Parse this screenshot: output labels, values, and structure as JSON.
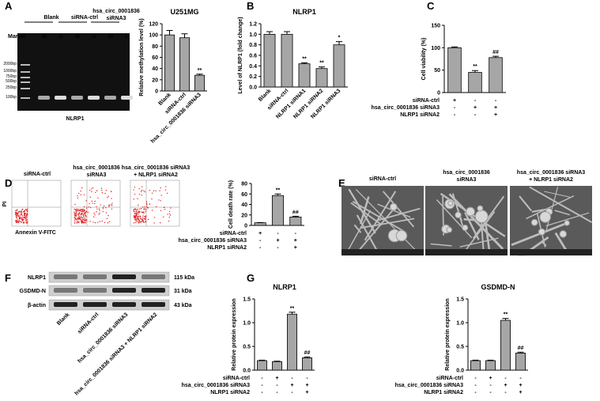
{
  "panel_labels": [
    "A",
    "B",
    "C",
    "D",
    "E",
    "F",
    "G"
  ],
  "gel": {
    "marker": "Marker",
    "lanes": [
      [
        "Blank"
      ],
      [
        "siRNA-ctrl"
      ],
      [
        "hsa_circ_0001836",
        "siRNA3"
      ]
    ],
    "lane_sub": [
      "M",
      "U",
      "M",
      "U",
      "M",
      "U"
    ],
    "sizes": [
      "2000bp",
      "1000bp",
      "750bp",
      "500bp",
      "250bp",
      "100bp"
    ],
    "caption": "NLRP1"
  },
  "flow": {
    "y_label": "PI",
    "x_label": "Annexin V-FITC",
    "titles": [
      [
        "siRNA-ctrl"
      ],
      [
        "hsa_circ_0001836",
        "siRNA3"
      ],
      [
        "hsa_circ_0001836 siRNA3",
        "+ NLRP1 siRNA2"
      ]
    ]
  },
  "sem": {
    "titles": [
      [
        "siRNA-ctrl"
      ],
      [
        "hsa_circ_0001836",
        "siRNA3"
      ],
      [
        "hsa_circ_0001836 siRNA3",
        "+ NLRP1 siRNA2"
      ]
    ]
  },
  "western": {
    "proteins": [
      "NLRP1",
      "GSDMD-N",
      "β-actin"
    ],
    "sizes": [
      "115 kDa",
      "31 kDa",
      "43 kDa"
    ],
    "lanes": [
      "Blank",
      "siRNA-ctrl",
      "hsa_circ_0001836 siRNA3",
      "hsa_circ_0001836 siRNA3 + NLRP1 siRNA2"
    ]
  },
  "chart_data": [
    {
      "type": "bar",
      "title": "U251MG",
      "y_label": "Relative methylation level (%)",
      "categories": [
        "Blank",
        "siRNA-ctrl",
        "hsa_circ_0001836 siRNA3"
      ],
      "values": [
        100,
        95,
        28
      ],
      "errors": [
        8,
        7,
        2
      ],
      "color": "#a6a6a6",
      "ylim": [
        0,
        120
      ],
      "yticks": [
        0,
        20,
        40,
        60,
        80,
        100,
        120
      ],
      "annotations": [
        {
          "index": 2,
          "text": "**"
        }
      ]
    },
    {
      "type": "bar",
      "title": "NLRP1",
      "y_label": "Level of NLRP1 (fold change)",
      "categories": [
        "Blank",
        "siRNA-ctrl",
        "NLRP1 siRNA1",
        "NLRP1 siRNA2",
        "NLRP1 siRNA3"
      ],
      "values": [
        1.0,
        1.0,
        0.44,
        0.35,
        0.8
      ],
      "errors": [
        0.05,
        0.05,
        0.02,
        0.03,
        0.06
      ],
      "color": "#a6a6a6",
      "ylim": [
        0,
        1.2
      ],
      "yticks": [
        {
          "value": 0,
          "label": "0.0"
        },
        0.2,
        0.4,
        0.6,
        0.8,
        {
          "value": 1,
          "label": "1.0"
        },
        1.2
      ],
      "annotations": [
        {
          "index": 2,
          "text": "**"
        },
        {
          "index": 3,
          "text": "**"
        },
        {
          "index": 4,
          "text": "*"
        }
      ]
    },
    {
      "type": "bar",
      "y_label": "Cell viability (%)",
      "conditions": [
        {
          "name": "siRNA-ctrl",
          "marks": [
            "+",
            "-",
            "-"
          ]
        },
        {
          "name": "hsa_circ_0001836 siRNA3",
          "marks": [
            "-",
            "+",
            "+"
          ]
        },
        {
          "name": "NLRP1 siRNA2",
          "marks": [
            "-",
            "-",
            "+"
          ]
        }
      ],
      "values": [
        100,
        45,
        78
      ],
      "errors": [
        2,
        4,
        3
      ],
      "color": "#a6a6a6",
      "ylim": [
        0,
        150
      ],
      "yticks": [
        0,
        50,
        100,
        150
      ],
      "annotations": [
        {
          "index": 1,
          "text": "**"
        },
        {
          "index": 2,
          "text": "##"
        }
      ]
    },
    {
      "type": "bar",
      "y_label": "Cell death rate (%)",
      "conditions": [
        {
          "name": "siRNA-ctrl",
          "marks": [
            "+",
            "-",
            "-"
          ]
        },
        {
          "name": "hsa_circ_0001836 siRNA3",
          "marks": [
            "-",
            "+",
            "+"
          ]
        },
        {
          "name": "NLRP1 siRNA2",
          "marks": [
            "-",
            "-",
            "+"
          ]
        }
      ],
      "values": [
        5,
        57,
        16
      ],
      "errors": [
        0.5,
        3,
        1.5
      ],
      "color": "#a6a6a6",
      "ylim": [
        0,
        80
      ],
      "yticks": [
        0,
        20,
        40,
        60,
        80
      ],
      "annotations": [
        {
          "index": 1,
          "text": "**"
        },
        {
          "index": 2,
          "text": "##"
        }
      ]
    },
    {
      "type": "bar",
      "title": "NLRP1",
      "y_label": "Relative protein expression",
      "conditions": [
        {
          "name": "siRNA-ctrl",
          "marks": [
            "-",
            "+",
            "-",
            "-"
          ]
        },
        {
          "name": "hsa_circ_0001836 siRNA3",
          "marks": [
            "-",
            "-",
            "+",
            "+"
          ]
        },
        {
          "name": "NLRP1 siRNA2",
          "marks": [
            "-",
            "-",
            "-",
            "+"
          ]
        }
      ],
      "values": [
        0.2,
        0.18,
        1.18,
        0.26
      ],
      "errors": [
        0.01,
        0.01,
        0.04,
        0.02
      ],
      "color": "#a6a6a6",
      "ylim": [
        0,
        1.5
      ],
      "yticks": [
        {
          "value": 0,
          "label": "0.0"
        },
        0.5,
        {
          "value": 1,
          "label": "1.0"
        },
        1.5
      ],
      "annotations": [
        {
          "index": 2,
          "text": "**"
        },
        {
          "index": 3,
          "text": "##"
        }
      ]
    },
    {
      "type": "bar",
      "title": "GSDMD-N",
      "y_label": "Relative protein expression",
      "conditions": [
        {
          "name": "siRNA-ctrl",
          "marks": [
            "-",
            "+",
            "-",
            "-"
          ]
        },
        {
          "name": "hsa_circ_0001836 siRNA3",
          "marks": [
            "-",
            "-",
            "+",
            "+"
          ]
        },
        {
          "name": "NLRP1 siRNA2",
          "marks": [
            "-",
            "-",
            "-",
            "+"
          ]
        }
      ],
      "values": [
        0.2,
        0.2,
        1.05,
        0.36
      ],
      "errors": [
        0.01,
        0.01,
        0.04,
        0.02
      ],
      "color": "#a6a6a6",
      "ylim": [
        0,
        1.5
      ],
      "yticks": [
        {
          "value": 0,
          "label": "0.0"
        },
        0.5,
        {
          "value": 1,
          "label": "1.0"
        },
        1.5
      ],
      "annotations": [
        {
          "index": 2,
          "text": "**"
        },
        {
          "index": 3,
          "text": "##"
        }
      ]
    }
  ]
}
